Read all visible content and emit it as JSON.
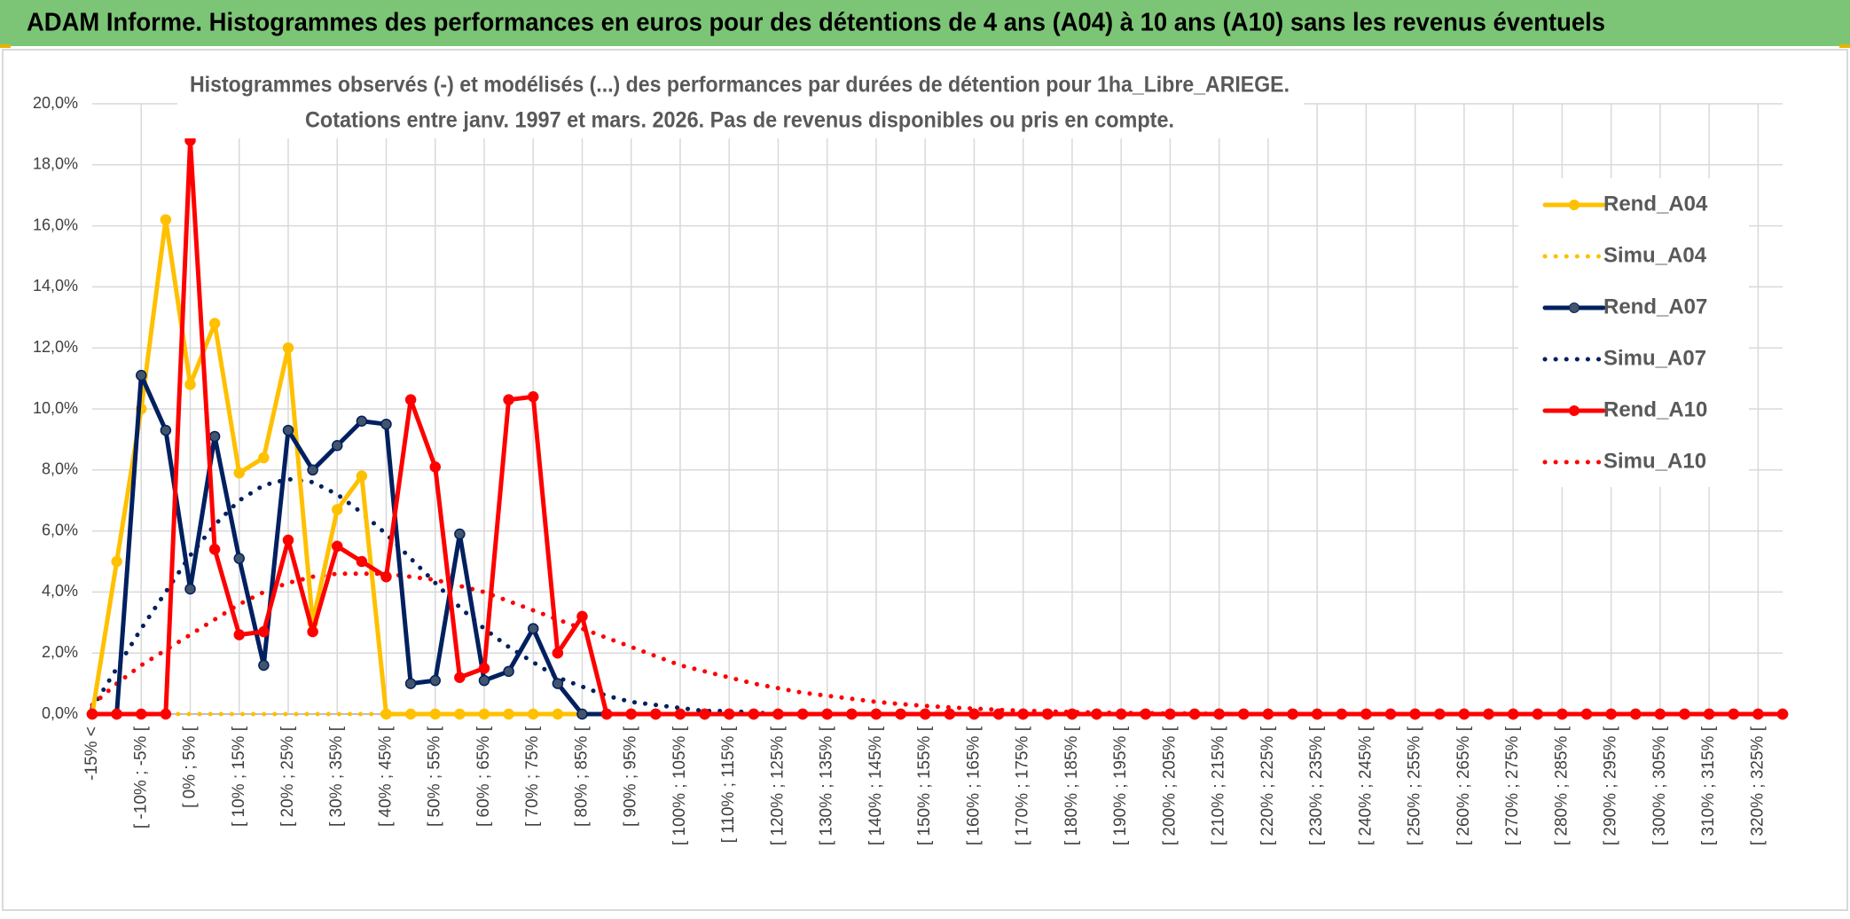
{
  "banner": "ADAM Informe. Histogrammes des performances en euros pour des détentions de 4 ans (A04) à 10 ans (A10) sans les revenus éventuels",
  "chart_data": {
    "type": "line",
    "title": "Histogrammes observés (-) et modélisés (...) des performances par durées de détention pour 1ha_Libre_ARIEGE.",
    "subtitle": "Cotations entre janv. 1997 et mars. 2026. Pas de revenus disponibles ou pris en compte.",
    "categories": [
      "-15% <",
      null,
      "[ -10% ; -5% [",
      null,
      "[ 0% ; 5% [",
      null,
      "[ 10% ; 15% [",
      null,
      "[ 20% ; 25% [",
      null,
      "[ 30% ; 35% [",
      null,
      "[ 40% ; 45% [",
      null,
      "[ 50% ; 55% [",
      null,
      "[ 60% ; 65% [",
      null,
      "[ 70% ; 75% [",
      null,
      "[ 80% ; 85% [",
      null,
      "[ 90% ; 95% [",
      null,
      "[ 100% ; 105% [",
      null,
      "[ 110% ; 115% [",
      null,
      "[ 120% ; 125% [",
      null,
      "[ 130% ; 135% [",
      null,
      "[ 140% ; 145% [",
      null,
      "[ 150% ; 155% [",
      null,
      "[ 160% ; 165% [",
      null,
      "[ 170% ; 175% [",
      null,
      "[ 180% ; 185% [",
      null,
      "[ 190% ; 195% [",
      null,
      "[ 200% ; 205% [",
      null,
      "[ 210% ; 215% [",
      null,
      "[ 220% ; 225% [",
      null,
      "[ 230% ; 235% [",
      null,
      "[ 240% ; 245% [",
      null,
      "[ 250% ; 255% [",
      null,
      "[ 260% ; 265% [",
      null,
      "[ 270% ; 275% [",
      null,
      "[ 280% ; 285% [",
      null,
      "[ 290% ; 295% [",
      null,
      "[ 300% ; 305% [",
      null,
      "[ 310% ; 315% [",
      null,
      "[ 320% ; 325% [",
      null
    ],
    "series": [
      {
        "name": "Rend_A04",
        "color": "#ffc000",
        "line_style": "solid",
        "markers": true,
        "values": [
          0,
          5.0,
          10.0,
          16.2,
          10.8,
          12.8,
          7.9,
          8.4,
          12.0,
          3.0,
          6.7,
          7.8,
          0,
          0,
          0,
          0,
          0,
          0,
          0,
          0,
          0,
          0,
          0,
          0,
          0,
          0,
          0,
          0,
          0,
          0,
          0,
          0,
          0,
          0,
          0,
          0,
          0,
          0,
          0,
          0,
          0,
          0,
          0,
          0,
          0,
          0,
          0,
          0,
          0,
          0,
          0,
          0,
          0,
          0,
          0,
          0,
          0,
          0,
          0,
          0,
          0,
          0,
          0,
          0,
          0,
          0,
          0,
          0,
          0,
          0
        ]
      },
      {
        "name": "Simu_A04",
        "color": "#ffc000",
        "line_style": "dotted",
        "markers": false,
        "values": [
          0,
          0,
          0,
          0,
          0,
          0,
          0,
          0,
          0,
          0,
          0,
          0,
          0,
          0,
          0,
          0,
          0,
          0,
          0,
          0,
          0,
          0,
          0,
          0,
          0,
          0,
          0,
          0,
          0,
          0,
          0,
          0,
          0,
          0,
          0,
          0,
          0,
          0,
          0,
          0,
          0,
          0,
          0,
          0,
          0,
          0,
          0,
          0,
          0,
          0,
          0,
          0,
          0,
          0,
          0,
          0,
          0,
          0,
          0,
          0,
          0,
          0,
          0,
          0,
          0,
          0,
          0,
          0,
          0,
          0
        ]
      },
      {
        "name": "Rend_A07",
        "color": "#002060",
        "line_style": "solid",
        "markers": true,
        "values": [
          0,
          0,
          11.1,
          9.3,
          4.1,
          9.1,
          5.1,
          1.6,
          9.3,
          8.0,
          8.8,
          9.6,
          9.5,
          1.0,
          1.1,
          5.9,
          1.1,
          1.4,
          2.8,
          1.0,
          0,
          0,
          0,
          0,
          0,
          0,
          0,
          0,
          0,
          0,
          0,
          0,
          0,
          0,
          0,
          0,
          0,
          0,
          0,
          0,
          0,
          0,
          0,
          0,
          0,
          0,
          0,
          0,
          0,
          0,
          0,
          0,
          0,
          0,
          0,
          0,
          0,
          0,
          0,
          0,
          0,
          0,
          0,
          0,
          0,
          0,
          0,
          0,
          0,
          0
        ]
      },
      {
        "name": "Simu_A07",
        "color": "#002060",
        "line_style": "dotted",
        "markers": false,
        "values": [
          0.2,
          1.5,
          2.8,
          4.0,
          5.2,
          6.2,
          7.0,
          7.5,
          7.7,
          7.6,
          7.2,
          6.6,
          5.9,
          5.1,
          4.3,
          3.5,
          2.8,
          2.2,
          1.7,
          1.2,
          0.9,
          0.6,
          0.4,
          0.3,
          0.2,
          0.1,
          0.1,
          0.05,
          0,
          0,
          0,
          0,
          0,
          0,
          0,
          0,
          0,
          0,
          0,
          0,
          0,
          0,
          0,
          0,
          0,
          0,
          0,
          0,
          0,
          0,
          0,
          0,
          0,
          0,
          0,
          0,
          0,
          0,
          0,
          0,
          0,
          0,
          0,
          0,
          0,
          0,
          0,
          0,
          0,
          0
        ]
      },
      {
        "name": "Rend_A10",
        "color": "#ff0000",
        "line_style": "solid",
        "markers": true,
        "values": [
          0,
          0,
          0,
          0,
          18.8,
          5.4,
          2.6,
          2.7,
          5.7,
          2.7,
          5.5,
          5.0,
          4.5,
          10.3,
          8.1,
          1.2,
          1.5,
          10.3,
          10.4,
          2.0,
          3.2,
          0,
          0,
          0,
          0,
          0,
          0,
          0,
          0,
          0,
          0,
          0,
          0,
          0,
          0,
          0,
          0,
          0,
          0,
          0,
          0,
          0,
          0,
          0,
          0,
          0,
          0,
          0,
          0,
          0,
          0,
          0,
          0,
          0,
          0,
          0,
          0,
          0,
          0,
          0,
          0,
          0,
          0,
          0,
          0,
          0,
          0,
          0,
          0,
          0
        ]
      },
      {
        "name": "Simu_A10",
        "color": "#ff0000",
        "line_style": "dotted",
        "markers": false,
        "values": [
          0.3,
          1.0,
          1.6,
          2.1,
          2.6,
          3.1,
          3.6,
          4.0,
          4.3,
          4.5,
          4.6,
          4.6,
          4.6,
          4.5,
          4.4,
          4.2,
          4.0,
          3.7,
          3.4,
          3.1,
          2.8,
          2.5,
          2.2,
          1.9,
          1.6,
          1.4,
          1.2,
          1.0,
          0.85,
          0.7,
          0.6,
          0.5,
          0.4,
          0.33,
          0.27,
          0.22,
          0.18,
          0.14,
          0.11,
          0.09,
          0.07,
          0.05,
          0.04,
          0.03,
          0.02,
          0.02,
          0.01,
          0,
          0,
          0,
          0,
          0,
          0,
          0,
          0,
          0,
          0,
          0,
          0,
          0,
          0,
          0,
          0,
          0,
          0,
          0,
          0,
          0,
          0,
          0
        ]
      }
    ],
    "ylim": [
      0,
      20
    ],
    "yticks": [
      {
        "value": 0,
        "label": "0,0%"
      },
      {
        "value": 2,
        "label": "2,0%"
      },
      {
        "value": 4,
        "label": "4,0%"
      },
      {
        "value": 6,
        "label": "6,0%"
      },
      {
        "value": 8,
        "label": "8,0%"
      },
      {
        "value": 10,
        "label": "10,0%"
      },
      {
        "value": 12,
        "label": "12,0%"
      },
      {
        "value": 14,
        "label": "14,0%"
      },
      {
        "value": 16,
        "label": "16,0%"
      },
      {
        "value": 18,
        "label": "18,0%"
      },
      {
        "value": 20,
        "label": "20,0%"
      }
    ],
    "grid": true,
    "legend": "right"
  }
}
